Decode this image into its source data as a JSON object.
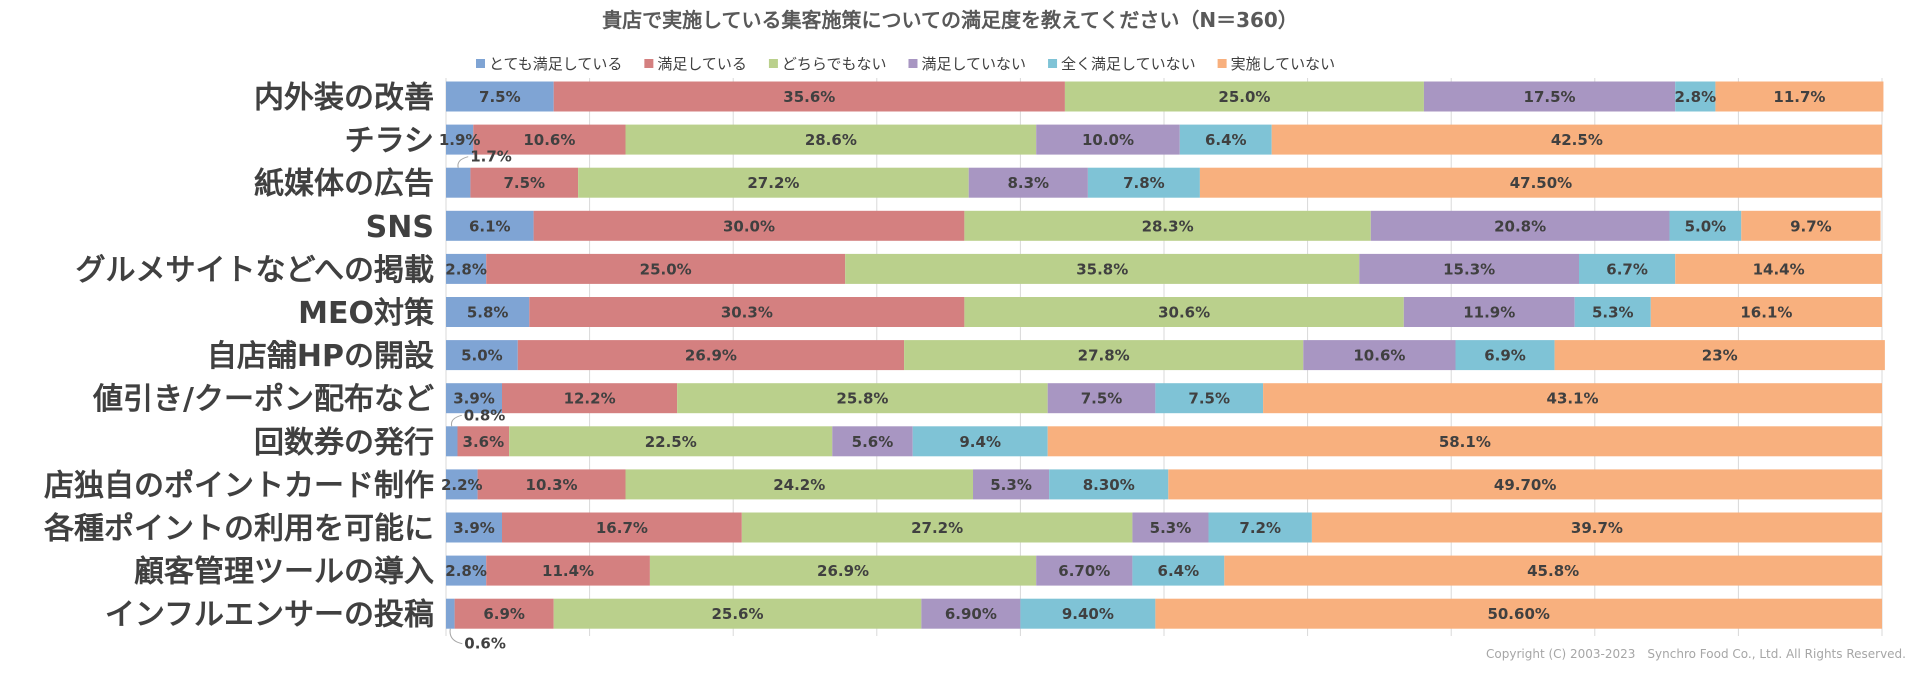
{
  "chart_data": {
    "type": "bar",
    "orientation": "horizontal",
    "stacked": true,
    "title": "貴店で実施している集客施策についての満足度を教えてください（N＝360）",
    "xlim": [
      0,
      100
    ],
    "grid": true,
    "legend_position": "top",
    "categories": [
      "内外装の改善",
      "チラシ",
      "紙媒体の広告",
      "SNS",
      "グルメサイトなどへの掲載",
      "MEO対策",
      "自店舗HPの開設",
      "値引き/クーポン配布など",
      "回数券の発行",
      "店独自のポイントカード制作",
      "各種ポイントの利用を可能に",
      "顧客管理ツールの導入",
      "インフルエンサーの投稿"
    ],
    "series": [
      {
        "name": "とても満足している",
        "color": "#7fa4d4",
        "values": [
          7.5,
          1.9,
          1.7,
          6.1,
          2.8,
          5.8,
          5.0,
          3.9,
          0.8,
          2.2,
          3.9,
          2.8,
          0.6
        ],
        "labels": [
          "7.5%",
          "1.9%",
          "1.7%",
          "6.1%",
          "2.8%",
          "5.8%",
          "5.0%",
          "3.9%",
          "0.8%",
          "2.2%",
          "3.9%",
          "2.8%",
          "0.6%"
        ]
      },
      {
        "name": "満足している",
        "color": "#d48080",
        "values": [
          35.6,
          10.6,
          7.5,
          30.0,
          25.0,
          30.3,
          26.9,
          12.2,
          3.6,
          10.3,
          16.7,
          11.4,
          6.9
        ],
        "labels": [
          "35.6%",
          "10.6%",
          "7.5%",
          "30.0%",
          "25.0%",
          "30.3%",
          "26.9%",
          "12.2%",
          "3.6%",
          "10.3%",
          "16.7%",
          "11.4%",
          "6.9%"
        ]
      },
      {
        "name": "どちらでもない",
        "color": "#bad08c",
        "values": [
          25.0,
          28.6,
          27.2,
          28.3,
          35.8,
          30.6,
          27.8,
          25.8,
          22.5,
          24.2,
          27.2,
          26.9,
          25.6
        ],
        "labels": [
          "25.0%",
          "28.6%",
          "27.2%",
          "28.3%",
          "35.8%",
          "30.6%",
          "27.8%",
          "25.8%",
          "22.5%",
          "24.2%",
          "27.2%",
          "26.9%",
          "25.6%"
        ]
      },
      {
        "name": "満足していない",
        "color": "#a896c2",
        "values": [
          17.5,
          10.0,
          8.3,
          20.8,
          15.3,
          11.9,
          10.6,
          7.5,
          5.6,
          5.3,
          5.3,
          6.7,
          6.9
        ],
        "labels": [
          "17.5%",
          "10.0%",
          "8.3%",
          "20.8%",
          "15.3%",
          "11.9%",
          "10.6%",
          "7.5%",
          "5.6%",
          "5.3%",
          "5.3%",
          "6.70%",
          "6.90%"
        ]
      },
      {
        "name": "全く満足していない",
        "color": "#7fc3d6",
        "values": [
          2.8,
          6.4,
          7.8,
          5.0,
          6.7,
          5.3,
          6.9,
          7.5,
          9.4,
          8.3,
          7.2,
          6.4,
          9.4
        ],
        "labels": [
          "2.8%",
          "6.4%",
          "7.8%",
          "5.0%",
          "6.7%",
          "5.3%",
          "6.9%",
          "7.5%",
          "9.4%",
          "8.30%",
          "7.2%",
          "6.4%",
          "9.40%"
        ]
      },
      {
        "name": "実施していない",
        "color": "#f8b07e",
        "values": [
          11.7,
          42.5,
          47.5,
          9.7,
          14.4,
          16.1,
          23.0,
          43.1,
          58.1,
          49.7,
          39.7,
          45.8,
          50.6
        ],
        "labels": [
          "11.7%",
          "42.5%",
          "47.50%",
          "9.7%",
          "14.4%",
          "16.1%",
          "23%",
          "43.1%",
          "58.1%",
          "49.70%",
          "39.7%",
          "45.8%",
          "50.60%"
        ]
      }
    ],
    "callouts": [
      {
        "category_index": 2,
        "series_index": 0,
        "text": "1.7%",
        "side": "above"
      },
      {
        "category_index": 8,
        "series_index": 0,
        "text": "0.8%",
        "side": "above"
      },
      {
        "category_index": 12,
        "series_index": 0,
        "text": "0.6%",
        "side": "below"
      }
    ]
  },
  "footer": {
    "copyright": "Copyright (C) 2003-2023　Synchro Food Co., Ltd. All Rights Reserved."
  }
}
